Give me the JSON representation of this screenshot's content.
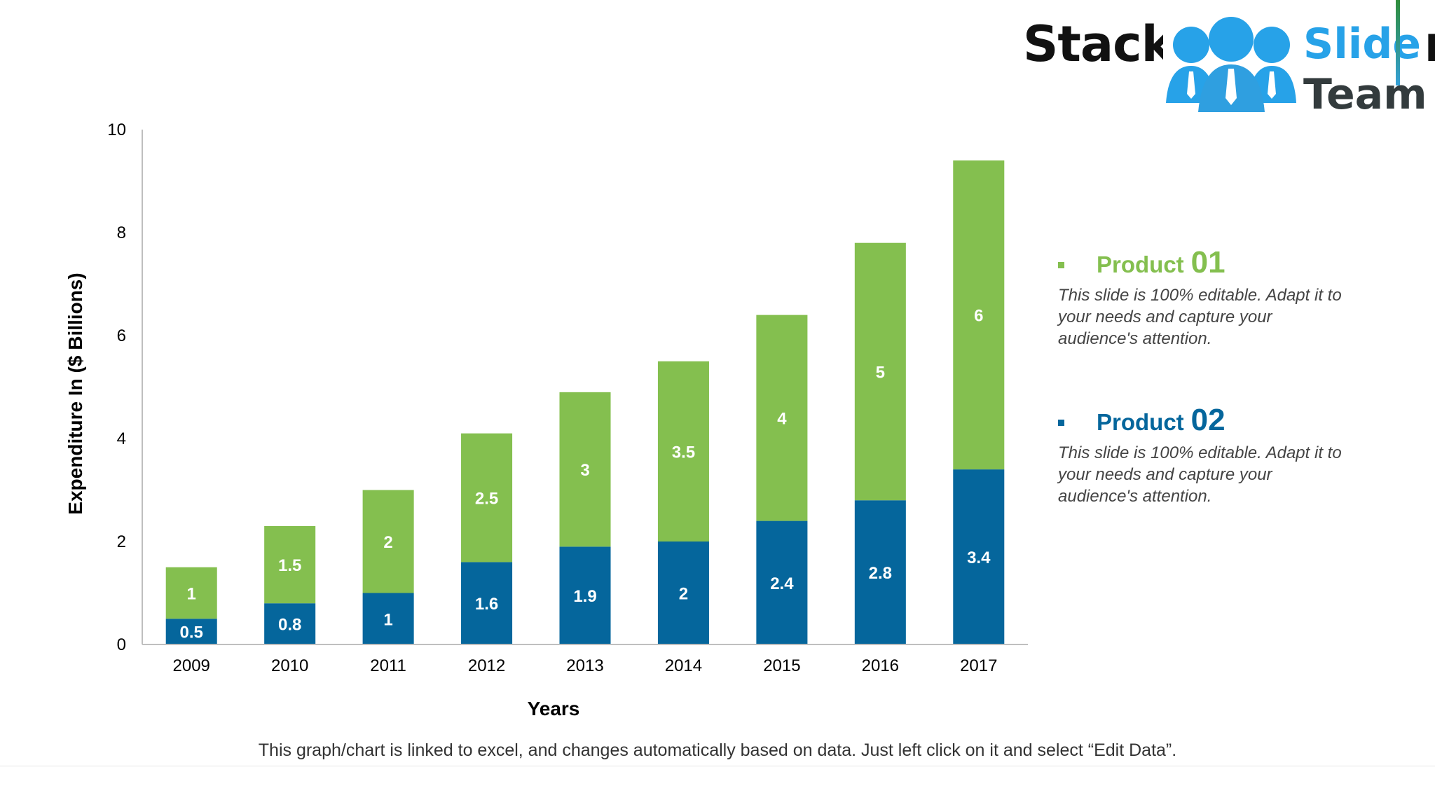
{
  "slide": {
    "title": "Stacked Column",
    "footnote": "This graph/chart is linked to excel, and changes automatically based on data. Just left click on it and select “Edit Data”."
  },
  "logo": {
    "word1": "Slide",
    "word2": "Team"
  },
  "legend": [
    {
      "label": "Product",
      "number": "01",
      "description": "This slide is 100% editable. Adapt it to your needs and capture your audience's attention."
    },
    {
      "label": "Product",
      "number": "02",
      "description": "This slide is 100% editable. Adapt it to your needs and capture your audience's attention."
    }
  ],
  "colors": {
    "product01": "#84bf4f",
    "product02": "#05669c",
    "axis": "#bfbfbf"
  },
  "chart_data": {
    "type": "bar",
    "stacked": true,
    "categories": [
      "2009",
      "2010",
      "2011",
      "2012",
      "2013",
      "2014",
      "2015",
      "2016",
      "2017"
    ],
    "series": [
      {
        "name": "Product 02",
        "color": "#05669c",
        "values": [
          0.5,
          0.8,
          1,
          1.6,
          1.9,
          2,
          2.4,
          2.8,
          3.4
        ]
      },
      {
        "name": "Product 01",
        "color": "#84bf4f",
        "values": [
          1,
          1.5,
          2,
          2.5,
          3,
          3.5,
          4,
          5,
          6
        ]
      }
    ],
    "xlabel": "Years",
    "ylabel": "Expenditure In ($ Billions)",
    "ylim": [
      0,
      10
    ],
    "yticks": [
      0,
      2,
      4,
      6,
      8,
      10
    ],
    "grid": false,
    "legend_position": "right"
  }
}
